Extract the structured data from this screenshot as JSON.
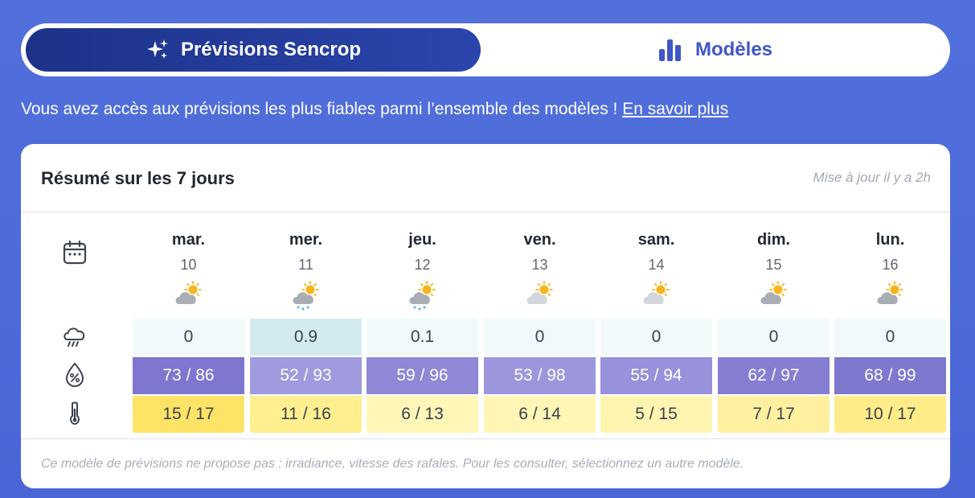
{
  "tabs": {
    "active_label": "Prévisions Sencrop",
    "inactive_label": "Modèles"
  },
  "info": {
    "text": "Vous avez accès aux prévisions les plus fiables parmi l’ensemble des modèles ! ",
    "link": "En savoir plus"
  },
  "card": {
    "title": "Résumé sur les 7 jours",
    "updated": "Mise à jour il y a 2h",
    "footnote": "Ce modèle de prévisions ne propose pas : irradiance, vitesse des rafales. Pour les consulter, sélectionnez un autre modèle."
  },
  "row_icons": [
    "calendar-icon",
    "rain-cloud-icon",
    "humidity-drop-icon",
    "thermometer-icon"
  ],
  "days": [
    {
      "name": "mar.",
      "date": "10",
      "weather": "sun-cloud",
      "rain": "0",
      "humidity": "73 / 86",
      "temp": "15 / 17",
      "rain_color": "#f1f9fb",
      "hum_color": "#7e76cf",
      "temp_color": "#fee466"
    },
    {
      "name": "mer.",
      "date": "11",
      "weather": "sun-cloud-rain",
      "rain": "0.9",
      "humidity": "52 / 93",
      "temp": "11 / 16",
      "rain_color": "#d3ebef",
      "hum_color": "#9f9bde",
      "temp_color": "#ffef8e"
    },
    {
      "name": "jeu.",
      "date": "12",
      "weather": "sun-cloud-rain",
      "rain": "0.1",
      "humidity": "59 / 96",
      "temp": "6 / 13",
      "rain_color": "#f1f9fb",
      "hum_color": "#8e88d7",
      "temp_color": "#fff6b8"
    },
    {
      "name": "ven.",
      "date": "13",
      "weather": "sun-cloud-light",
      "rain": "0",
      "humidity": "53 / 98",
      "temp": "6 / 14",
      "rain_color": "#f1f9fb",
      "hum_color": "#9c97dd",
      "temp_color": "#fff6b6"
    },
    {
      "name": "sam.",
      "date": "14",
      "weather": "sun-cloud-light",
      "rain": "0",
      "humidity": "55 / 94",
      "temp": "5 / 15",
      "rain_color": "#f1f9fb",
      "hum_color": "#9892dc",
      "temp_color": "#fff5b0"
    },
    {
      "name": "dim.",
      "date": "15",
      "weather": "sun-cloud",
      "rain": "0",
      "humidity": "62 / 97",
      "temp": "7 / 17",
      "rain_color": "#f1f9fb",
      "hum_color": "#857ed2",
      "temp_color": "#fff0a0"
    },
    {
      "name": "lun.",
      "date": "16",
      "weather": "sun-cloud",
      "rain": "0",
      "humidity": "68 / 99",
      "temp": "10 / 17",
      "rain_color": "#f1f9fb",
      "hum_color": "#7f78cf",
      "temp_color": "#ffec88"
    }
  ]
}
